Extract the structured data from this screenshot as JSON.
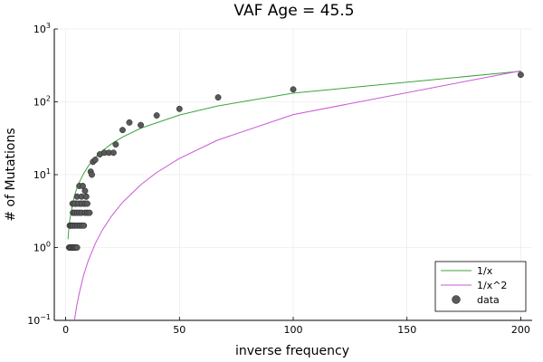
{
  "chart_data": {
    "type": "scatter",
    "title": "VAF Age = 45.5",
    "xlabel": "inverse frequency",
    "ylabel": "# of Mutations",
    "xlim": [
      -5,
      205
    ],
    "ylim_log10": [
      -1,
      3
    ],
    "xscale": "linear",
    "yscale": "log10",
    "grid": true,
    "legend_position": "bottom-right",
    "x_ticks": [
      0,
      50,
      100,
      150,
      200
    ],
    "x_tick_labels": [
      "0",
      "50",
      "100",
      "150",
      "200"
    ],
    "y_ticks": [
      0.1,
      1,
      10,
      100,
      1000
    ],
    "y_tick_labels": [
      {
        "base": "10",
        "exp": "−1"
      },
      {
        "base": "10",
        "exp": "0"
      },
      {
        "base": "10",
        "exp": "1"
      },
      {
        "base": "10",
        "exp": "2"
      },
      {
        "base": "10",
        "exp": "3"
      }
    ],
    "series": [
      {
        "name": "1/x",
        "kind": "line",
        "color": "#3da33d",
        "x": [
          1.0,
          1.5,
          2,
          3,
          4,
          5,
          6,
          8,
          10,
          13,
          16,
          20,
          25,
          33.3,
          50,
          66.7,
          100,
          200
        ],
        "y": [
          1.3,
          2.0,
          2.6,
          3.9,
          5.3,
          6.6,
          7.9,
          10.5,
          13.2,
          17.2,
          21.1,
          26.3,
          32.9,
          43.8,
          65.8,
          87.7,
          131.6,
          263
        ]
      },
      {
        "name": "1/x^2",
        "kind": "line",
        "color": "#c957d6",
        "x": [
          3.5,
          4,
          5,
          6,
          8,
          10,
          13,
          16,
          20,
          25,
          33.3,
          40,
          50,
          66.7,
          100,
          200
        ],
        "y": [
          0.08,
          0.107,
          0.167,
          0.24,
          0.43,
          0.67,
          1.13,
          1.71,
          2.67,
          4.17,
          7.4,
          10.7,
          16.7,
          29.7,
          66.8,
          267
        ]
      },
      {
        "name": "data",
        "kind": "scatter",
        "color": "#595959",
        "x": [
          1.5,
          2,
          2.5,
          3,
          3.5,
          4,
          4.5,
          5,
          1.8,
          2.3,
          2.8,
          3.3,
          4.2,
          5.2,
          6.2,
          7,
          8,
          3.2,
          4.0,
          5.0,
          6.0,
          7.0,
          8.5,
          9.5,
          10.5,
          3.0,
          4.5,
          6.5,
          8.0,
          4.0,
          5.5,
          7.0,
          8.5,
          9.5,
          5.0,
          7.0,
          9.0,
          6.0,
          7.5,
          8.5,
          9.0,
          12,
          11,
          11.5,
          13,
          15,
          17,
          19,
          21,
          22,
          25,
          28,
          33,
          40,
          50,
          67,
          100,
          200
        ],
        "y": [
          1,
          1,
          1,
          1,
          1,
          1,
          1,
          1,
          2,
          2,
          2,
          2,
          2,
          2,
          2,
          2,
          2,
          3,
          3,
          3,
          3,
          3,
          3,
          3,
          3,
          4,
          4,
          4,
          4,
          4,
          4,
          4,
          4,
          4,
          5,
          5,
          5,
          7,
          7,
          6,
          5,
          15,
          11,
          10,
          16,
          19,
          20,
          20,
          20,
          26,
          41,
          52,
          48,
          65,
          80,
          115,
          148,
          235
        ]
      }
    ]
  }
}
